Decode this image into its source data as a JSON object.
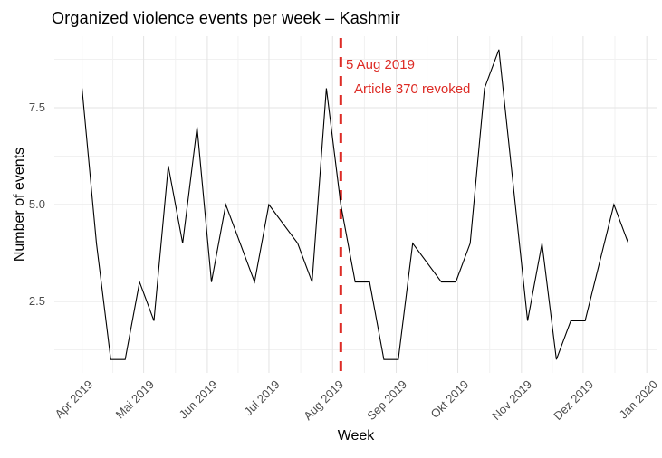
{
  "title": "Organized violence events per week – Kashmir",
  "annotation": {
    "line1": "5 Aug 2019",
    "line2": "Article 370 revoked",
    "color": "#dd2c26",
    "event_date": "2019-08-05",
    "event_day": 126
  },
  "chart_data": {
    "type": "line",
    "title": "Organized violence events per week – Kashmir",
    "xlabel": "Week",
    "ylabel": "Number of events",
    "x_start_date": "2019-04-01",
    "x_unit": "weekly observations; day = days since 2019-04-01",
    "line_color": "#000000",
    "grid": true,
    "grid_major_color": "#e3e3e3",
    "grid_minor_color": "#f1f1f1",
    "ylim": [
      1,
      9
    ],
    "legend": "none",
    "vline": {
      "day": 126,
      "date": "2019-08-05",
      "style": "dashed",
      "color": "#dd2c26"
    },
    "points": [
      {
        "date": "2019-04-01",
        "day": 0,
        "value": 8
      },
      {
        "date": "2019-04-08",
        "day": 7,
        "value": 4
      },
      {
        "date": "2019-04-15",
        "day": 14,
        "value": 1
      },
      {
        "date": "2019-04-22",
        "day": 21,
        "value": 1
      },
      {
        "date": "2019-04-29",
        "day": 28,
        "value": 3
      },
      {
        "date": "2019-05-06",
        "day": 35,
        "value": 2
      },
      {
        "date": "2019-05-13",
        "day": 42,
        "value": 6
      },
      {
        "date": "2019-05-20",
        "day": 49,
        "value": 4
      },
      {
        "date": "2019-05-27",
        "day": 56,
        "value": 7
      },
      {
        "date": "2019-06-03",
        "day": 63,
        "value": 3
      },
      {
        "date": "2019-06-10",
        "day": 70,
        "value": 5
      },
      {
        "date": "2019-06-17",
        "day": 77,
        "value": 4
      },
      {
        "date": "2019-06-24",
        "day": 84,
        "value": 3
      },
      {
        "date": "2019-07-01",
        "day": 91,
        "value": 5
      },
      {
        "date": "2019-07-15",
        "day": 105,
        "value": 4
      },
      {
        "date": "2019-07-22",
        "day": 112,
        "value": 3
      },
      {
        "date": "2019-07-29",
        "day": 119,
        "value": 8
      },
      {
        "date": "2019-08-05",
        "day": 126,
        "value": 5
      },
      {
        "date": "2019-08-12",
        "day": 133,
        "value": 3
      },
      {
        "date": "2019-08-19",
        "day": 140,
        "value": 3
      },
      {
        "date": "2019-08-26",
        "day": 147,
        "value": 1
      },
      {
        "date": "2019-09-02",
        "day": 154,
        "value": 1
      },
      {
        "date": "2019-09-09",
        "day": 161,
        "value": 4
      },
      {
        "date": "2019-09-23",
        "day": 175,
        "value": 3
      },
      {
        "date": "2019-09-30",
        "day": 182,
        "value": 3
      },
      {
        "date": "2019-10-07",
        "day": 189,
        "value": 4
      },
      {
        "date": "2019-10-14",
        "day": 196,
        "value": 8
      },
      {
        "date": "2019-10-21",
        "day": 203,
        "value": 9
      },
      {
        "date": "2019-11-04",
        "day": 217,
        "value": 2
      },
      {
        "date": "2019-11-11",
        "day": 224,
        "value": 4
      },
      {
        "date": "2019-11-18",
        "day": 231,
        "value": 1
      },
      {
        "date": "2019-11-25",
        "day": 238,
        "value": 2
      },
      {
        "date": "2019-12-02",
        "day": 245,
        "value": 2
      },
      {
        "date": "2019-12-16",
        "day": 259,
        "value": 5
      },
      {
        "date": "2019-12-23",
        "day": 266,
        "value": 4
      }
    ],
    "x_ticks": [
      {
        "label": "Apr 2019",
        "day": 0
      },
      {
        "label": "Mai 2019",
        "day": 30
      },
      {
        "label": "Jun 2019",
        "day": 61
      },
      {
        "label": "Jul 2019",
        "day": 91
      },
      {
        "label": "Aug 2019",
        "day": 122
      },
      {
        "label": "Sep 2019",
        "day": 153
      },
      {
        "label": "Okt 2019",
        "day": 183
      },
      {
        "label": "Nov 2019",
        "day": 214
      },
      {
        "label": "Dez 2019",
        "day": 244
      },
      {
        "label": "Jan 2020",
        "day": 275
      }
    ],
    "x_minor_days": [
      15,
      45.5,
      76,
      106.5,
      137.5,
      168,
      198.5,
      229,
      259.5
    ],
    "y_ticks": [
      {
        "label": "2.5",
        "value": 2.5
      },
      {
        "label": "5.0",
        "value": 5.0
      },
      {
        "label": "7.5",
        "value": 7.5
      }
    ],
    "y_minor_values": [
      1.25,
      3.75,
      6.25,
      8.75
    ]
  }
}
